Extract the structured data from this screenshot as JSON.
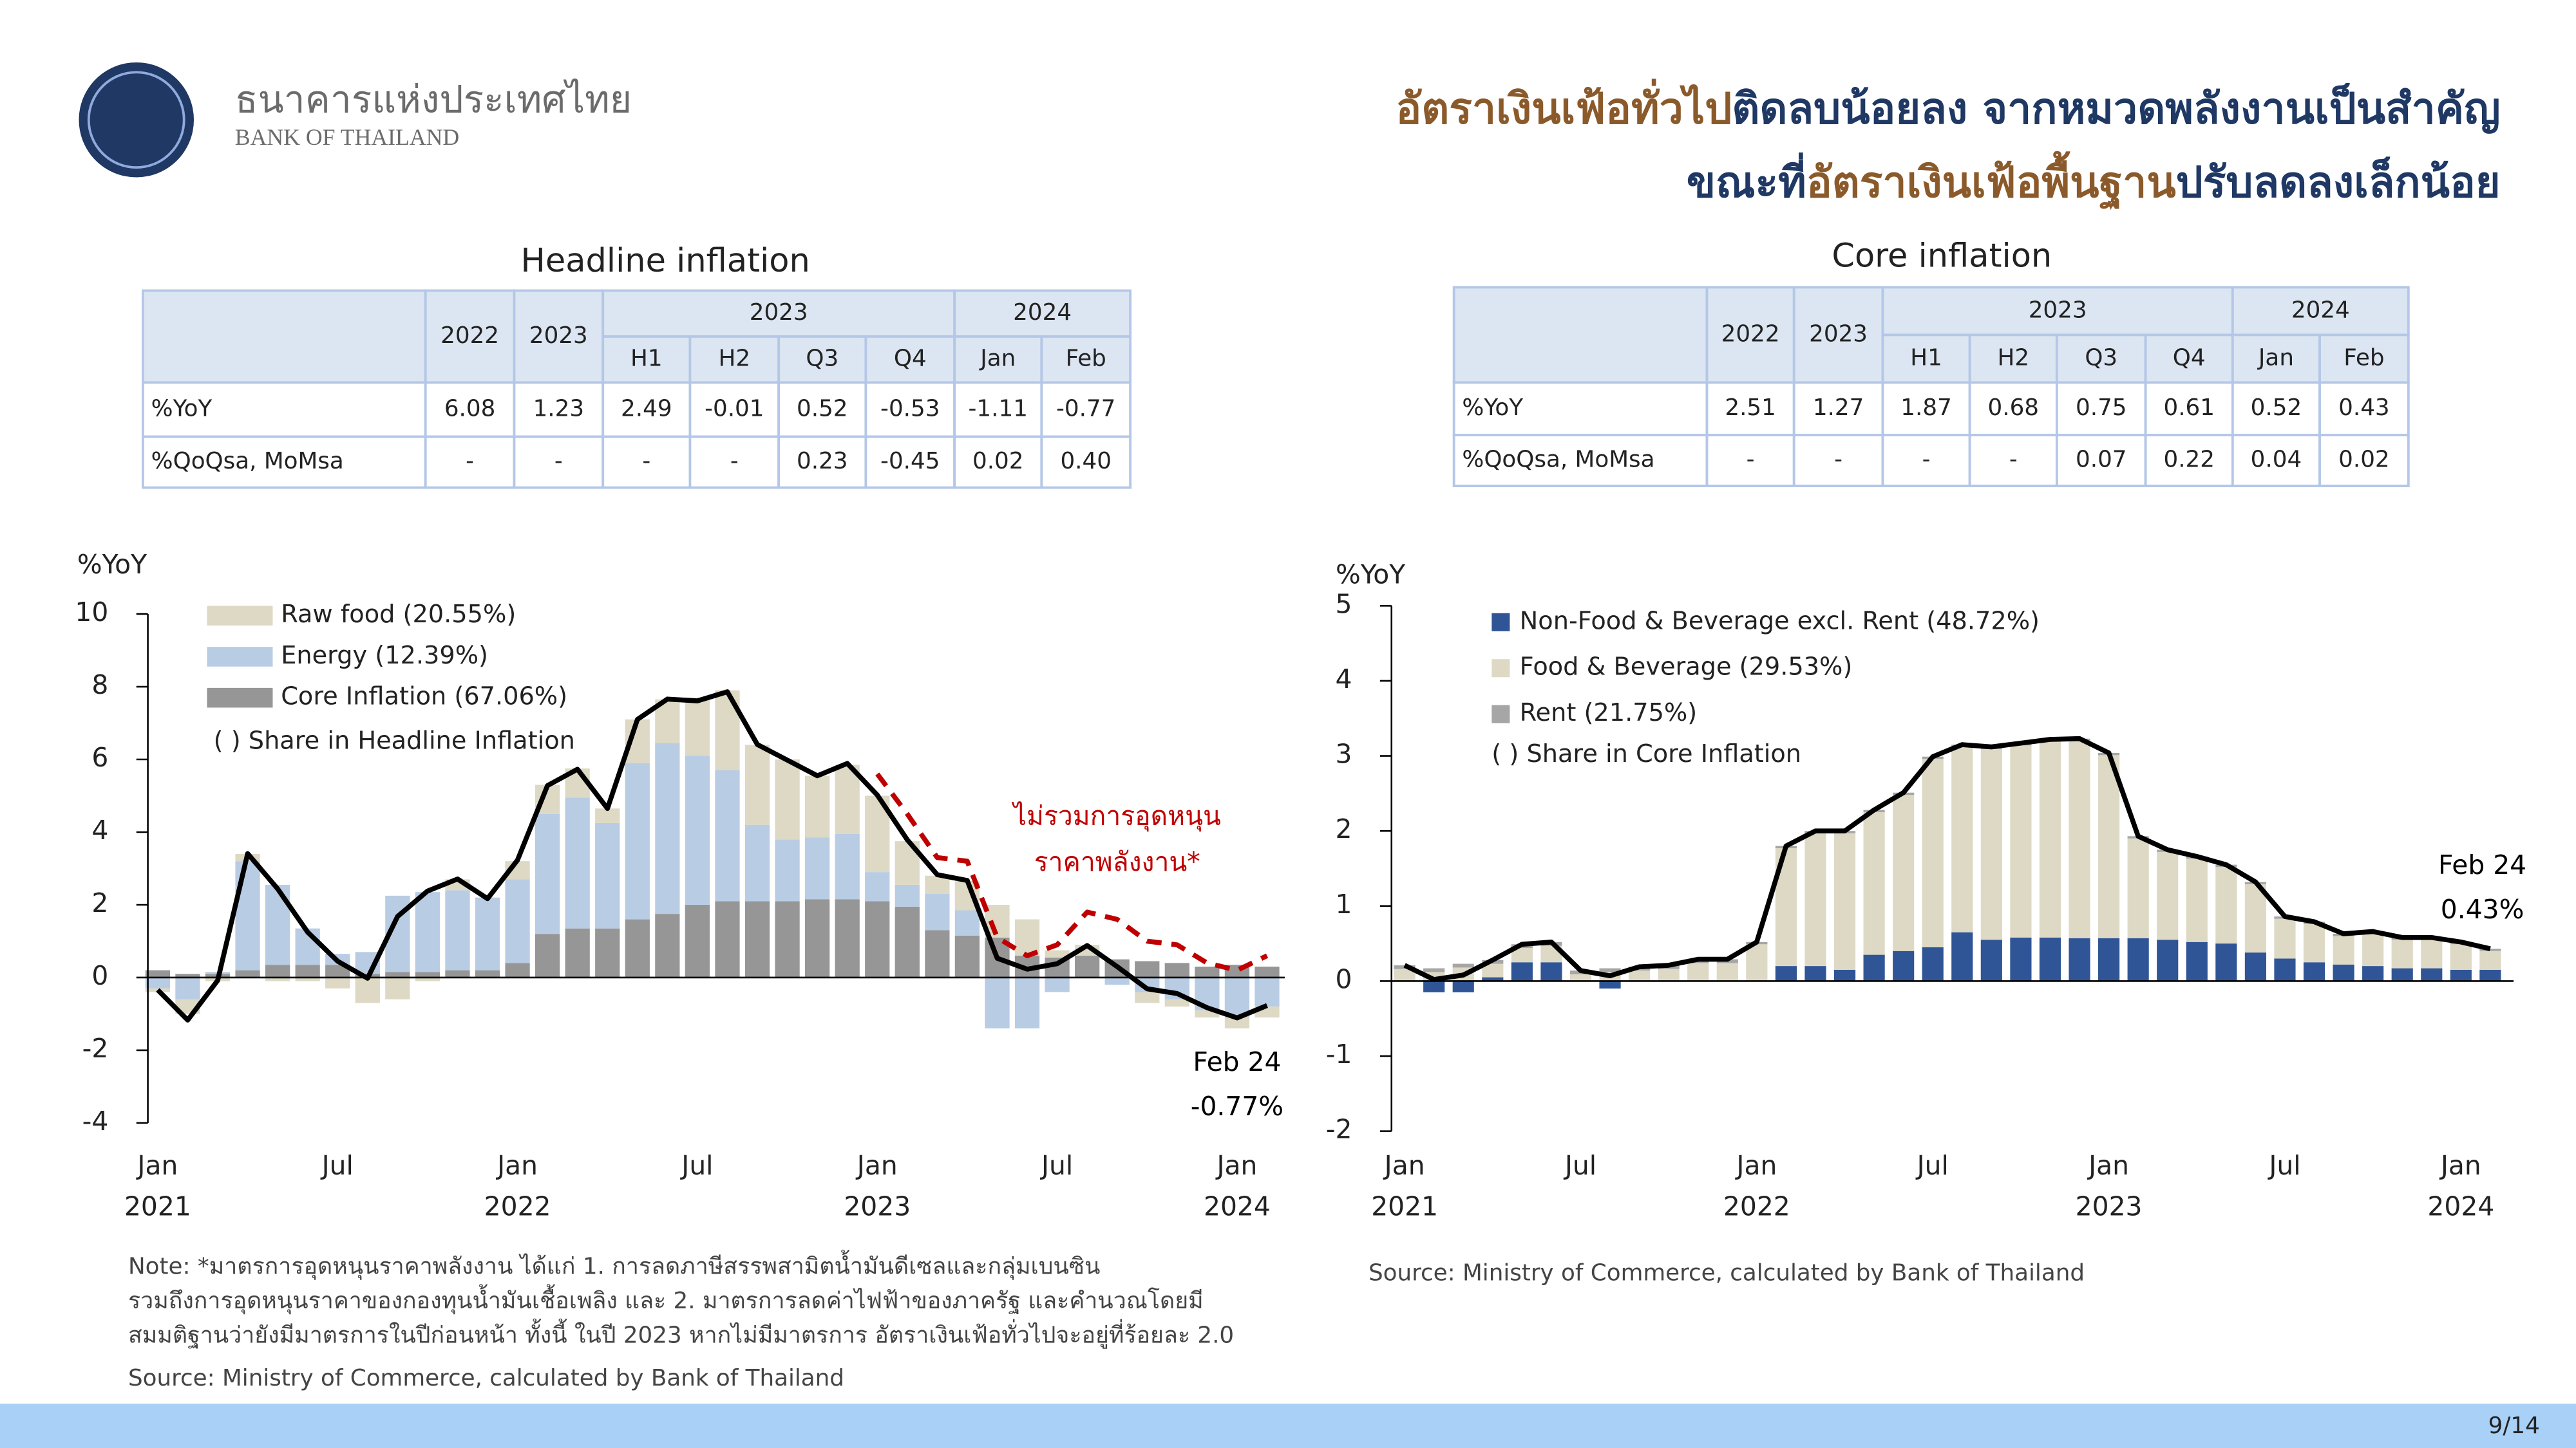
{
  "header": {
    "bank_name_th": "ธนาคารแห่งประเทศไทย",
    "bank_name_en": "BANK OF THAILAND",
    "title": [
      [
        {
          "text": "อัตราเงินเฟ้อทั่วไป",
          "color": "#8b5a2b"
        },
        {
          "text": "ติดลบน้อยลง จากหมวดพลังงานเป็นสำคัญ",
          "color": "#1f3864"
        }
      ],
      [
        {
          "text": "ขณะที่",
          "color": "#1f3864"
        },
        {
          "text": "อัตราเงินเฟ้อพื้นฐาน",
          "color": "#8b5a2b"
        },
        {
          "text": "ปรับลดลงเล็กน้อย",
          "color": "#1f3864"
        }
      ]
    ]
  },
  "tables": [
    {
      "title": "Headline inflation",
      "years": [
        "2022",
        "2023"
      ],
      "groups": [
        {
          "label": "2023",
          "cols": [
            "H1",
            "H2",
            "Q3",
            "Q4"
          ]
        },
        {
          "label": "2024",
          "cols": [
            "Jan",
            "Feb"
          ]
        }
      ],
      "rows": [
        {
          "label": "%YoY",
          "cells": [
            "6.08",
            "1.23",
            "2.49",
            "-0.01",
            "0.52",
            "-0.53",
            "-1.11",
            "-0.77"
          ]
        },
        {
          "label": "%QoQsa, MoMsa",
          "cells": [
            "-",
            "-",
            "-",
            "-",
            "0.23",
            "-0.45",
            "0.02",
            "0.40"
          ]
        }
      ]
    },
    {
      "title": "Core inflation",
      "years": [
        "2022",
        "2023"
      ],
      "groups": [
        {
          "label": "2023",
          "cols": [
            "H1",
            "H2",
            "Q3",
            "Q4"
          ]
        },
        {
          "label": "2024",
          "cols": [
            "Jan",
            "Feb"
          ]
        }
      ],
      "rows": [
        {
          "label": "%YoY",
          "cells": [
            "2.51",
            "1.27",
            "1.87",
            "0.68",
            "0.75",
            "0.61",
            "0.52",
            "0.43"
          ]
        },
        {
          "label": "%QoQsa, MoMsa",
          "cells": [
            "-",
            "-",
            "-",
            "-",
            "0.07",
            "0.22",
            "0.04",
            "0.02"
          ]
        }
      ]
    }
  ],
  "chart_data": [
    {
      "type": "stacked_bar_line",
      "y_label": "%YoY",
      "ylim": [
        -4,
        10
      ],
      "yticks": [
        -4,
        -2,
        0,
        2,
        4,
        6,
        8,
        10
      ],
      "stack_from": "last",
      "categories": [
        "Jan",
        null,
        null,
        null,
        null,
        null,
        "Jul",
        null,
        null,
        null,
        null,
        null,
        "Jan",
        null,
        null,
        null,
        null,
        null,
        "Jul",
        null,
        null,
        null,
        null,
        null,
        "Jan",
        null,
        null,
        null,
        null,
        null,
        "Jul",
        null,
        null,
        null,
        null,
        null,
        "Jan",
        null
      ],
      "category_years": [
        "2021",
        null,
        null,
        null,
        null,
        null,
        null,
        null,
        null,
        null,
        null,
        null,
        "2022",
        null,
        null,
        null,
        null,
        null,
        null,
        null,
        null,
        null,
        null,
        null,
        "2023",
        null,
        null,
        null,
        null,
        null,
        null,
        null,
        null,
        null,
        null,
        null,
        "2024",
        null
      ],
      "series": [
        {
          "name": "Raw food (20.55%)",
          "color": "#ddd9c4",
          "values": [
            -0.1,
            -0.4,
            -0.1,
            0.2,
            -0.1,
            -0.1,
            -0.3,
            -0.7,
            -0.6,
            -0.1,
            0.3,
            0.0,
            0.5,
            0.8,
            0.8,
            0.4,
            1.2,
            1.2,
            1.6,
            2.2,
            2.2,
            2.2,
            1.7,
            1.9,
            2.1,
            1.2,
            0.5,
            0.8,
            0.9,
            1.0,
            0.2,
            0.3,
            0.0,
            -0.3,
            -0.2,
            -0.2,
            -0.3,
            -0.3
          ]
        },
        {
          "name": "Energy (12.39%)",
          "color": "#b8cce4",
          "values": [
            -0.3,
            -0.6,
            0.05,
            3.0,
            2.2,
            1.0,
            0.3,
            0.6,
            2.1,
            2.2,
            2.2,
            2.0,
            2.3,
            3.3,
            3.6,
            2.9,
            4.3,
            4.7,
            4.1,
            3.6,
            2.1,
            1.7,
            1.7,
            1.8,
            0.8,
            0.6,
            1.0,
            0.7,
            -1.4,
            -1.4,
            -0.4,
            0.0,
            -0.2,
            -0.4,
            -0.6,
            -0.9,
            -1.1,
            -0.8
          ]
        },
        {
          "name": "Core Inflation (67.06%)",
          "color": "#969696",
          "values": [
            0.2,
            0.1,
            0.1,
            0.2,
            0.35,
            0.35,
            0.35,
            0.1,
            0.15,
            0.15,
            0.2,
            0.2,
            0.4,
            1.2,
            1.35,
            1.35,
            1.6,
            1.75,
            2.0,
            2.1,
            2.1,
            2.1,
            2.15,
            2.15,
            2.1,
            1.95,
            1.3,
            1.15,
            1.1,
            0.6,
            0.55,
            0.6,
            0.5,
            0.45,
            0.4,
            0.3,
            0.35,
            0.3
          ]
        }
      ],
      "legend_note": "( ) Share in Headline Inflation",
      "lines": [
        {
          "color": "#000000",
          "dashed": false,
          "values": [
            -0.34,
            -1.17,
            -0.08,
            3.41,
            2.44,
            1.25,
            0.45,
            -0.02,
            1.68,
            2.38,
            2.71,
            2.17,
            3.23,
            5.28,
            5.73,
            4.65,
            7.1,
            7.66,
            7.61,
            7.86,
            6.41,
            5.98,
            5.55,
            5.89,
            5.02,
            3.79,
            2.83,
            2.67,
            0.53,
            0.23,
            0.38,
            0.88,
            0.3,
            -0.31,
            -0.44,
            -0.83,
            -1.11,
            -0.77
          ]
        },
        {
          "color": "#c00000",
          "dashed": true,
          "values": [
            null,
            null,
            null,
            null,
            null,
            null,
            null,
            null,
            null,
            null,
            null,
            null,
            null,
            null,
            null,
            null,
            null,
            null,
            null,
            null,
            null,
            null,
            null,
            null,
            5.6,
            4.5,
            3.3,
            3.2,
            1.1,
            0.6,
            0.9,
            1.8,
            1.6,
            1.0,
            0.9,
            0.4,
            0.2,
            0.6
          ]
        }
      ],
      "annotations": [
        {
          "text": "ไม่รวมการอุดหนุน",
          "color": "#c00000"
        },
        {
          "text": "ราคาพลังงาน*",
          "color": "#c00000"
        },
        {
          "text": "Feb 24",
          "color": "#000000"
        },
        {
          "text": "-0.77%",
          "color": "#000000"
        }
      ]
    },
    {
      "type": "stacked_bar_line",
      "y_label": "%YoY",
      "ylim": [
        -2,
        5
      ],
      "yticks": [
        -2,
        -1,
        0,
        1,
        2,
        3,
        4,
        5
      ],
      "stack_from": "first",
      "categories": [
        "Jan",
        null,
        null,
        null,
        null,
        null,
        "Jul",
        null,
        null,
        null,
        null,
        null,
        "Jan",
        null,
        null,
        null,
        null,
        null,
        "Jul",
        null,
        null,
        null,
        null,
        null,
        "Jan",
        null,
        null,
        null,
        null,
        null,
        "Jul",
        null,
        null,
        null,
        null,
        null,
        "Jan",
        null
      ],
      "category_years": [
        "2021",
        null,
        null,
        null,
        null,
        null,
        null,
        null,
        null,
        null,
        null,
        null,
        "2022",
        null,
        null,
        null,
        null,
        null,
        null,
        null,
        null,
        null,
        null,
        null,
        "2023",
        null,
        null,
        null,
        null,
        null,
        null,
        null,
        null,
        null,
        null,
        null,
        "2024",
        null
      ],
      "series": [
        {
          "name": "Non-Food & Beverage excl. Rent (48.72%)",
          "color": "#2f5597",
          "values": [
            0.0,
            -0.15,
            -0.15,
            0.05,
            0.25,
            0.25,
            0.0,
            -0.1,
            0.0,
            0.0,
            0.0,
            0.0,
            0.0,
            0.2,
            0.2,
            0.15,
            0.35,
            0.4,
            0.45,
            0.65,
            0.55,
            0.58,
            0.58,
            0.57,
            0.57,
            0.57,
            0.55,
            0.52,
            0.5,
            0.38,
            0.3,
            0.25,
            0.22,
            0.2,
            0.17,
            0.17,
            0.15,
            0.15
          ]
        },
        {
          "name": "Food & Beverage (29.53%)",
          "color": "#ddd9c4",
          "values": [
            0.16,
            0.12,
            0.18,
            0.18,
            0.19,
            0.22,
            0.09,
            0.12,
            0.14,
            0.16,
            0.24,
            0.24,
            0.49,
            1.57,
            1.77,
            1.82,
            1.9,
            2.08,
            2.51,
            2.47,
            2.54,
            2.56,
            2.61,
            2.63,
            2.44,
            1.33,
            1.17,
            1.11,
            1.02,
            0.91,
            0.53,
            0.51,
            0.38,
            0.43,
            0.38,
            0.38,
            0.34,
            0.25
          ]
        },
        {
          "name": "Rent (21.75%)",
          "color": "#a6a6a6",
          "values": [
            0.05,
            0.05,
            0.05,
            0.05,
            0.05,
            0.05,
            0.05,
            0.05,
            0.05,
            0.05,
            0.05,
            0.05,
            0.03,
            0.03,
            0.03,
            0.03,
            0.03,
            0.03,
            0.03,
            0.03,
            0.03,
            0.03,
            0.03,
            0.03,
            0.03,
            0.03,
            0.03,
            0.03,
            0.03,
            0.03,
            0.03,
            0.03,
            0.03,
            0.03,
            0.03,
            0.03,
            0.03,
            0.03
          ]
        }
      ],
      "legend_note": "( ) Share in Core Inflation",
      "lines": [
        {
          "color": "#000000",
          "dashed": false,
          "values": [
            0.21,
            0.02,
            0.08,
            0.28,
            0.49,
            0.52,
            0.14,
            0.07,
            0.19,
            0.21,
            0.29,
            0.29,
            0.52,
            1.8,
            2.0,
            2.0,
            2.28,
            2.51,
            2.99,
            3.15,
            3.12,
            3.17,
            3.22,
            3.23,
            3.04,
            1.93,
            1.75,
            1.66,
            1.55,
            1.32,
            0.86,
            0.79,
            0.63,
            0.66,
            0.58,
            0.58,
            0.52,
            0.43
          ]
        }
      ],
      "annotations": [
        {
          "text": "Feb 24",
          "color": "#000000"
        },
        {
          "text": "0.43%",
          "color": "#000000"
        }
      ]
    }
  ],
  "notes": {
    "lines": [
      "Note: *มาตรการอุดหนุนราคาพลังงาน ได้แก่ 1. การลดภาษีสรรพสามิตน้ำมันดีเซลและกลุ่มเบนซิน",
      "รวมถึงการอุดหนุนราคาของกองทุนน้ำมันเชื้อเพลิง และ 2. มาตรการลดค่าไฟฟ้าของภาครัฐ และคำนวณโดยมี",
      "สมมติฐานว่ายังมีมาตรการในปีก่อนหน้า ทั้งนี้ ในปี 2023 หากไม่มีมาตรการ อัตราเงินเฟ้อทั่วไปจะอยู่ที่ร้อยละ 2.0"
    ],
    "source": "Source: Ministry of Commerce, calculated by Bank of Thailand"
  },
  "source_core": "Source: Ministry of Commerce, calculated by Bank of Thailand",
  "page_number": "9/14"
}
